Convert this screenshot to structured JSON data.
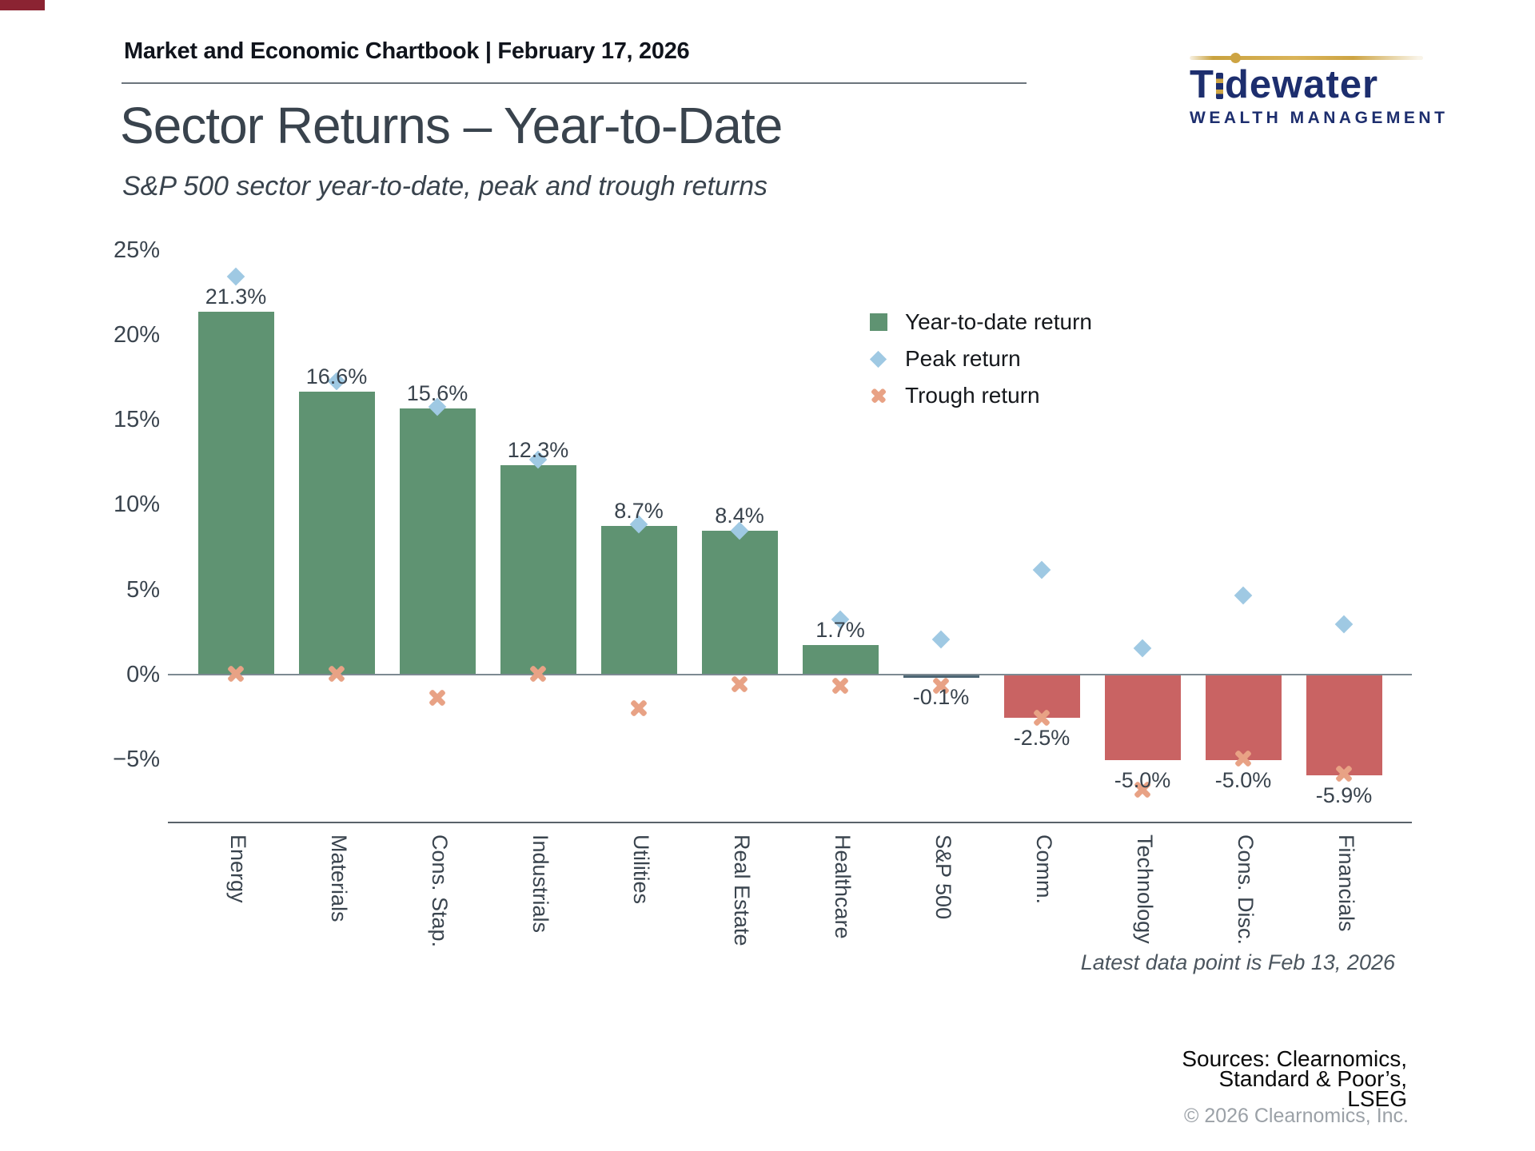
{
  "page": {
    "header_text": "Market and Economic Chartbook | February 17, 2026",
    "title": "Sector Returns – Year-to-Date",
    "subtitle": "S&P 500 sector year-to-date, peak and trough returns",
    "footnote": "Latest data point is Feb 13, 2026",
    "sources_lines": [
      "Sources: Clearnomics,",
      "Standard & Poor’s,",
      "LSEG"
    ],
    "copyright": "© 2026 Clearnomics, Inc."
  },
  "logo": {
    "wordmark_t": "T",
    "wordmark_rest": "dewater",
    "tagline": "WEALTH MANAGEMENT",
    "navy": "#1d2e6e",
    "gold": "#cda443"
  },
  "legend": {
    "items": [
      {
        "label": "Year-to-date return",
        "marker": "square-icon",
        "color": "#5f9372"
      },
      {
        "label": "Peak return",
        "marker": "diamond-icon",
        "color": "#9fc9e3"
      },
      {
        "label": "Trough return",
        "marker": "cross-icon",
        "color": "#e8a285"
      }
    ]
  },
  "chart_data": {
    "type": "bar",
    "title": "Sector Returns – Year-to-Date",
    "subtitle": "S&P 500 sector year-to-date, peak and trough returns",
    "categories": [
      "Energy",
      "Materials",
      "Cons. Stap.",
      "Industrials",
      "Utilities",
      "Real Estate",
      "Healthcare",
      "S&P 500",
      "Comm.",
      "Technology",
      "Cons. Disc.",
      "Financials"
    ],
    "series": [
      {
        "name": "Year-to-date return",
        "type": "bar",
        "values": [
          21.3,
          16.6,
          15.6,
          12.3,
          8.7,
          8.4,
          1.7,
          -0.1,
          -2.5,
          -5.0,
          -5.0,
          -5.9
        ]
      },
      {
        "name": "Peak return",
        "type": "scatter-diamond",
        "values": [
          23.4,
          17.2,
          15.7,
          12.6,
          8.8,
          8.4,
          3.2,
          2.0,
          6.1,
          1.5,
          4.6,
          2.9
        ]
      },
      {
        "name": "Trough return",
        "type": "scatter-x",
        "values": [
          0.0,
          0.0,
          -1.4,
          0.0,
          -2.0,
          -0.6,
          -0.7,
          -0.7,
          -2.6,
          -6.8,
          -5.0,
          -5.9
        ]
      }
    ],
    "value_labels": [
      "21.3%",
      "16.6%",
      "15.6%",
      "12.3%",
      "8.7%",
      "8.4%",
      "1.7%",
      "-0.1%",
      "-2.5%",
      "-5.0%",
      "-5.0%",
      "-5.9%"
    ],
    "bar_colors": [
      "#5f9372",
      "#5f9372",
      "#5f9372",
      "#5f9372",
      "#5f9372",
      "#5f9372",
      "#5f9372",
      "#4d6674",
      "#c96363",
      "#c96363",
      "#c96363",
      "#c96363"
    ],
    "marker_colors": {
      "peak": "#9fc9e3",
      "trough": "#e8a285"
    },
    "yticks": [
      {
        "label": "25%",
        "value": 25
      },
      {
        "label": "20%",
        "value": 20
      },
      {
        "label": "15%",
        "value": 15
      },
      {
        "label": "10%",
        "value": 10
      },
      {
        "label": "5%",
        "value": 5
      },
      {
        "label": "0%",
        "value": 0
      },
      {
        "label": "−5%",
        "value": -5
      }
    ],
    "ylim": [
      -8.6,
      26.6
    ],
    "xlabel": "",
    "ylabel": "",
    "grid": false,
    "legend_position": "upper-right"
  }
}
